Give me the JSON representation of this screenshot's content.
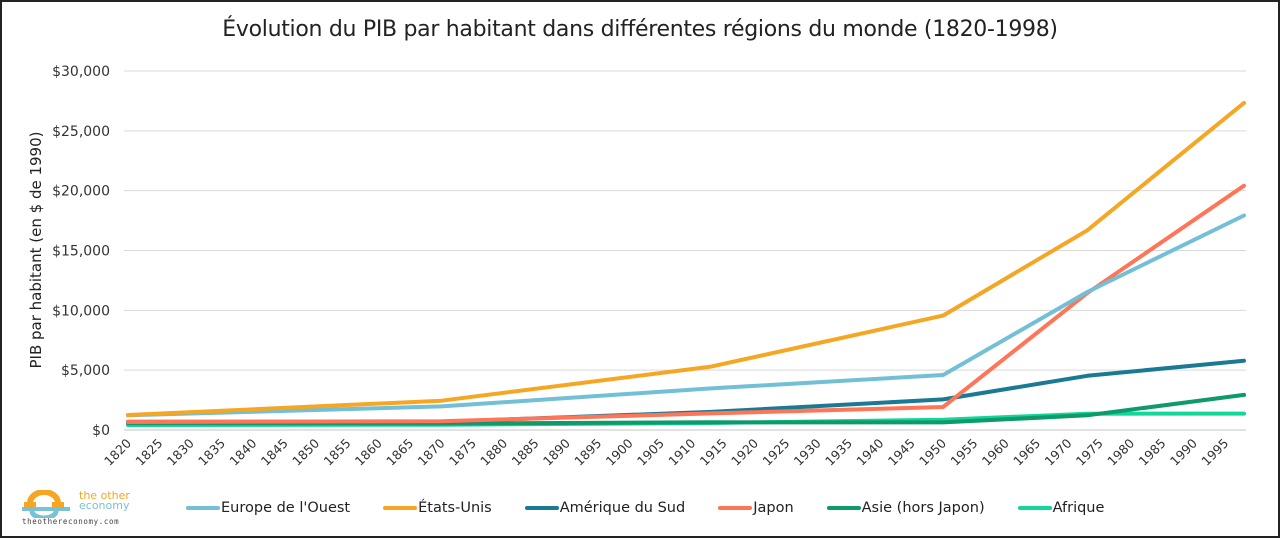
{
  "chart_data": {
    "type": "line",
    "title": "Évolution du PIB par habitant dans différentes régions du monde (1820-1998)",
    "xlabel": "",
    "ylabel": "PIB par habitant (en $ de 1990)",
    "x": [
      1820,
      1870,
      1913,
      1950,
      1973,
      1998
    ],
    "xlim": [
      1820,
      1998
    ],
    "x_ticks": [
      "1820",
      "1825",
      "1830",
      "1835",
      "1840",
      "1845",
      "1850",
      "1855",
      "1860",
      "1865",
      "1870",
      "1875",
      "1880",
      "1885",
      "1890",
      "1895",
      "1900",
      "1905",
      "1910",
      "1915",
      "1920",
      "1925",
      "1930",
      "1935",
      "1940",
      "1945",
      "1950",
      "1955",
      "1960",
      "1965",
      "1970",
      "1975",
      "1980",
      "1985",
      "1990",
      "1995"
    ],
    "ylim": [
      0,
      30000
    ],
    "y_ticks": [
      {
        "value": 0,
        "label": "$0"
      },
      {
        "value": 5000,
        "label": "$5,000"
      },
      {
        "value": 10000,
        "label": "$10,000"
      },
      {
        "value": 15000,
        "label": "$15,000"
      },
      {
        "value": 20000,
        "label": "$20,000"
      },
      {
        "value": 25000,
        "label": "$25,000"
      },
      {
        "value": 30000,
        "label": "$30,000"
      }
    ],
    "grid": true,
    "legend_position": "bottom",
    "series": [
      {
        "name": "Europe de l'Ouest",
        "color": "#72bfd6",
        "values": [
          1232,
          1974,
          3473,
          4594,
          11534,
          17921
        ]
      },
      {
        "name": "États-Unis",
        "color": "#f5a623",
        "values": [
          1257,
          2445,
          5301,
          9561,
          16689,
          27331
        ]
      },
      {
        "name": "Amérique du Sud",
        "color": "#1b7a93",
        "values": [
          692,
          681,
          1511,
          2554,
          4531,
          5795
        ]
      },
      {
        "name": "Japon",
        "color": "#ff7557",
        "values": [
          669,
          737,
          1387,
          1926,
          11439,
          20413
        ]
      },
      {
        "name": "Asie (hors Japon)",
        "color": "#0e9a6b",
        "values": [
          575,
          543,
          640,
          635,
          1231,
          2936
        ]
      },
      {
        "name": "Afrique",
        "color": "#13d69a",
        "values": [
          418,
          444,
          585,
          852,
          1365,
          1368
        ]
      }
    ]
  },
  "logo": {
    "line1": "the other",
    "line2": "economy",
    "url": "theothereconomy.com"
  }
}
